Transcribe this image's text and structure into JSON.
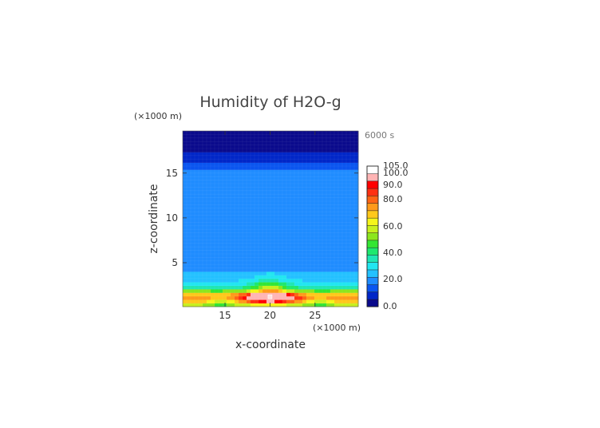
{
  "chart_data": {
    "type": "heatmap",
    "title": "Humidity of H2O-g",
    "xlabel": "x-coordinate",
    "ylabel": "z-coordinate",
    "x_unit": "(×1000 m)",
    "y_unit": "(×1000 m)",
    "time_label": "6000 s",
    "xlim": [
      10.3,
      29.8
    ],
    "ylim": [
      0.1,
      19.7
    ],
    "x_ticks": [
      "15",
      "20",
      "25"
    ],
    "x_tick_values": [
      15,
      20,
      25
    ],
    "y_ticks": [
      "5",
      "10",
      "15"
    ],
    "y_tick_values": [
      5,
      10,
      15
    ],
    "colorbar": {
      "labels": [
        "0.0",
        "20.0",
        "40.0",
        "60.0",
        "80.0",
        "90.0",
        "100.0",
        "105.0"
      ],
      "label_values": [
        0,
        20,
        40,
        60,
        80,
        90,
        100,
        105
      ],
      "colors": [
        "#0a0a8c",
        "#0026c8",
        "#0a55f0",
        "#1f8cff",
        "#23c1ff",
        "#21e6f0",
        "#1fe6b4",
        "#1ee86e",
        "#33e633",
        "#8ce61e",
        "#c8f01e",
        "#f5f51a",
        "#ffc81a",
        "#ff9a1a",
        "#ff6414",
        "#ff3012",
        "#ff0000",
        "#ffb4b4",
        "#ffffff"
      ]
    },
    "profile_z": [
      0.1,
      0.7,
      1.3,
      2.0,
      2.7,
      3.5,
      4.5,
      6,
      8,
      10,
      12,
      14,
      15.3,
      15.7,
      16.2,
      16.8,
      17.5,
      18.3,
      19.0,
      19.7
    ],
    "profile_values": [
      55,
      75,
      85,
      45,
      30,
      24,
      22,
      21,
      21,
      21,
      21,
      21,
      20,
      15,
      11,
      8,
      5,
      3,
      2,
      2
    ],
    "peak": {
      "x": 20,
      "z": 1.2,
      "value": 100
    }
  }
}
